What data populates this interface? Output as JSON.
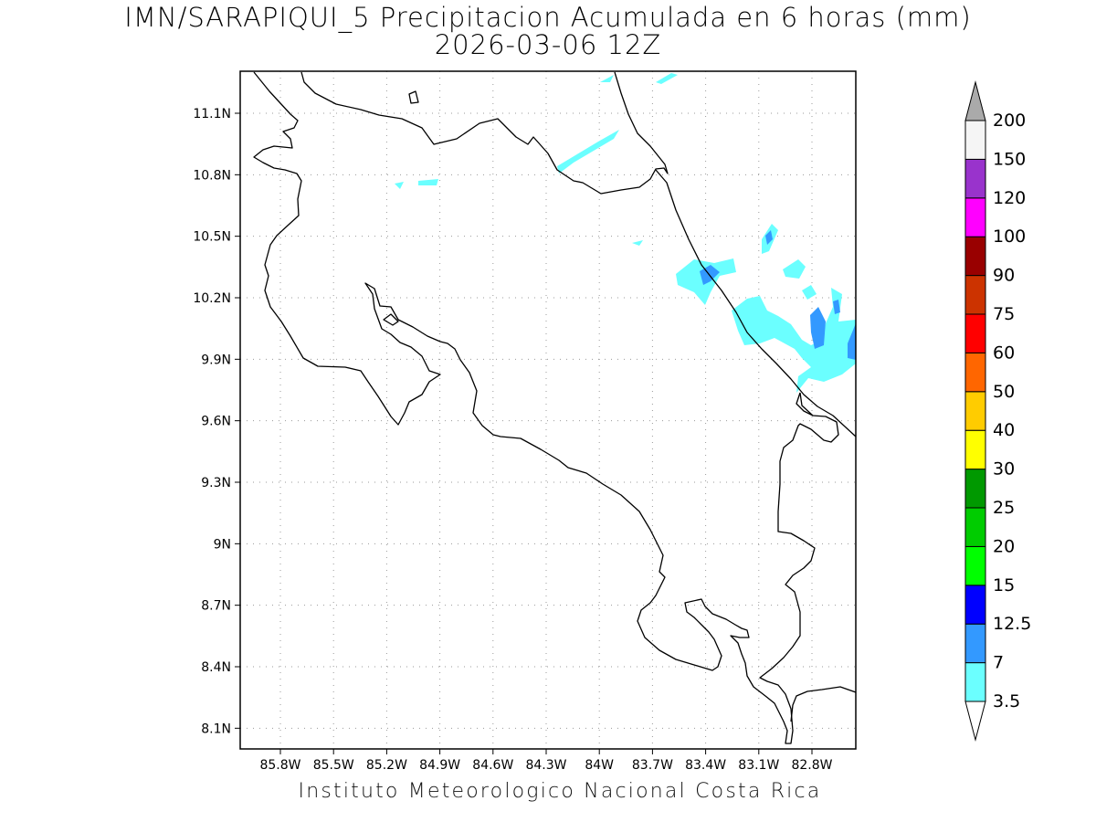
{
  "title": {
    "line1": "IMN/SARAPIQUI_5 Precipitacion Acumulada en 6 horas (mm)",
    "line2": "2026-03-06 12Z"
  },
  "credit": "Instituto Meteorologico Nacional Costa Rica",
  "map": {
    "lat_ticks": [
      "11.1N",
      "10.8N",
      "10.5N",
      "10.2N",
      "9.9N",
      "9.6N",
      "9.3N",
      "9N",
      "8.7N",
      "8.4N",
      "8.1N"
    ],
    "lon_ticks": [
      "85.8W",
      "85.5W",
      "85.2W",
      "84.9W",
      "84.6W",
      "84.3W",
      "84W",
      "83.7W",
      "83.4W",
      "83.1W",
      "82.8W"
    ],
    "lat_values": [
      11.1,
      10.8,
      10.5,
      10.2,
      9.9,
      9.6,
      9.3,
      9.0,
      8.7,
      8.4,
      8.1
    ],
    "lon_values": [
      -85.8,
      -85.5,
      -85.2,
      -84.9,
      -84.6,
      -84.3,
      -84.0,
      -83.7,
      -83.4,
      -83.1,
      -82.8
    ],
    "grid": "dotted",
    "colors": {
      "coastline": "#000000",
      "grid": "#9a9a9a"
    }
  },
  "colorbar": {
    "labels": [
      "3.5",
      "7",
      "12.5",
      "15",
      "20",
      "25",
      "30",
      "40",
      "50",
      "60",
      "75",
      "90",
      "100",
      "120",
      "150",
      "200"
    ],
    "colors": [
      "#6bffff",
      "#3399ff",
      "#0000ff",
      "#00ff00",
      "#00cc00",
      "#009900",
      "#ffff00",
      "#ffcc00",
      "#ff6600",
      "#ff0000",
      "#cc3300",
      "#990000",
      "#ff00ff",
      "#9933cc",
      "#f5f5f5",
      "#aaaaaa"
    ],
    "under_color": "#ffffff",
    "over_color": "#aaaaaa"
  },
  "precip_colors": {
    "light": "#6bffff",
    "medium": "#3399ff"
  }
}
